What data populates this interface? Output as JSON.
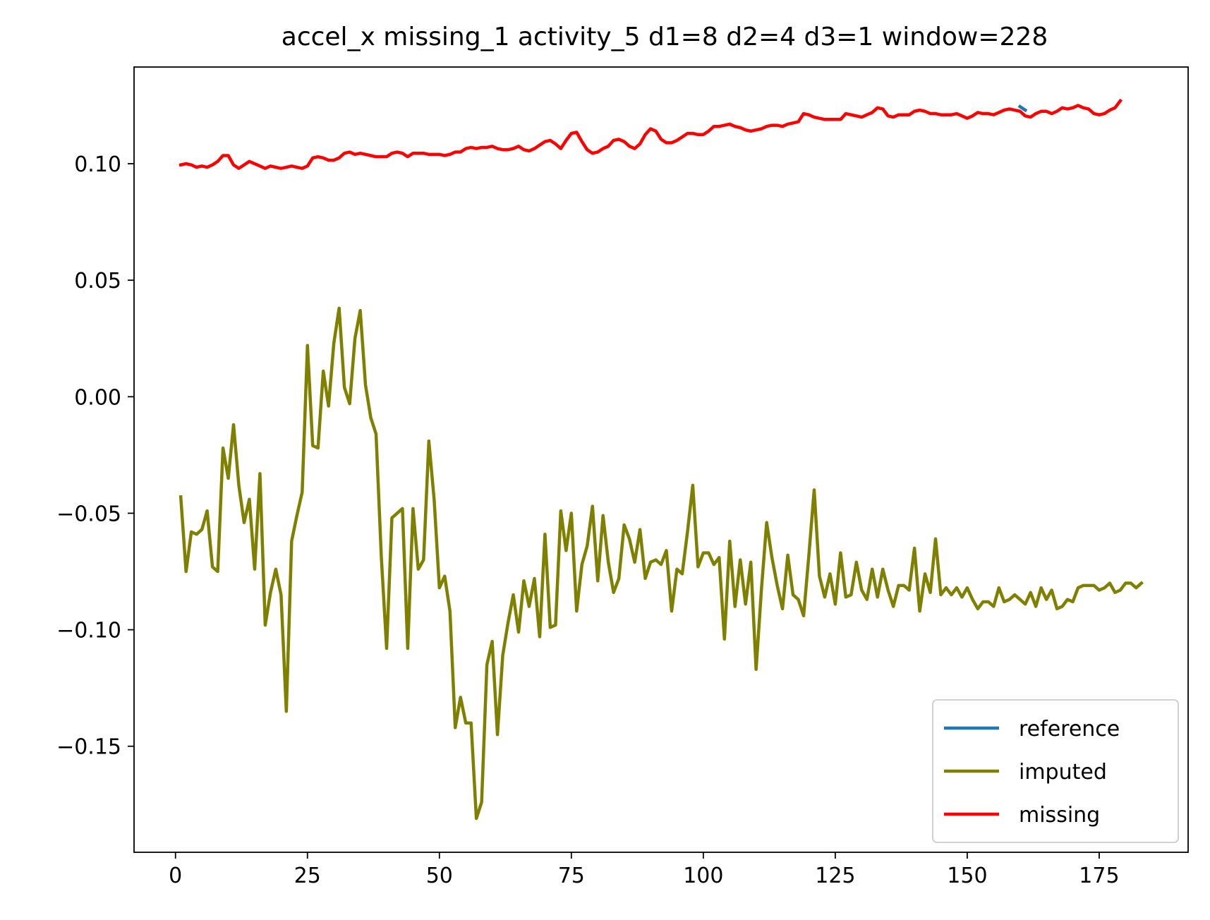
{
  "chart_data": {
    "type": "line",
    "title": "accel_x missing_1 activity_5 d1=8 d2=4 d3=1 window=228",
    "xlabel": "",
    "ylabel": "",
    "xlim": [
      -7.85,
      191.85
    ],
    "ylim": [
      -0.1955,
      0.1415
    ],
    "x_ticks": [
      0,
      25,
      50,
      75,
      100,
      125,
      150,
      175
    ],
    "x_tick_labels": [
      "0",
      "25",
      "50",
      "75",
      "100",
      "125",
      "150",
      "175"
    ],
    "y_ticks": [
      -0.15,
      -0.1,
      -0.05,
      0.0,
      0.05,
      0.1
    ],
    "y_tick_labels": [
      "−0.15",
      "−0.10",
      "−0.05",
      "0.00",
      "0.05",
      "0.10"
    ],
    "grid": false,
    "legend_position": "lower right",
    "x_start": 1,
    "series": [
      {
        "name": "reference",
        "color": "#1f77b4",
        "x_start": 160,
        "values": [
          0.1245,
          0.123
        ]
      },
      {
        "name": "imputed",
        "color": "#808000",
        "x_start": 1,
        "values": [
          -0.043,
          -0.075,
          -0.058,
          -0.059,
          -0.057,
          -0.049,
          -0.073,
          -0.075,
          -0.022,
          -0.035,
          -0.012,
          -0.038,
          -0.054,
          -0.044,
          -0.074,
          -0.033,
          -0.098,
          -0.084,
          -0.074,
          -0.085,
          -0.135,
          -0.062,
          -0.051,
          -0.041,
          0.022,
          -0.021,
          -0.022,
          0.011,
          -0.004,
          0.023,
          0.038,
          0.004,
          -0.003,
          0.025,
          0.037,
          0.005,
          -0.009,
          -0.016,
          -0.069,
          -0.108,
          -0.052,
          -0.05,
          -0.048,
          -0.108,
          -0.048,
          -0.074,
          -0.07,
          -0.019,
          -0.044,
          -0.082,
          -0.077,
          -0.092,
          -0.142,
          -0.129,
          -0.14,
          -0.14,
          -0.181,
          -0.174,
          -0.115,
          -0.105,
          -0.145,
          -0.111,
          -0.097,
          -0.085,
          -0.101,
          -0.079,
          -0.09,
          -0.078,
          -0.103,
          -0.059,
          -0.099,
          -0.098,
          -0.049,
          -0.066,
          -0.05,
          -0.092,
          -0.072,
          -0.064,
          -0.047,
          -0.079,
          -0.051,
          -0.071,
          -0.084,
          -0.078,
          -0.055,
          -0.061,
          -0.071,
          -0.057,
          -0.078,
          -0.071,
          -0.07,
          -0.072,
          -0.066,
          -0.092,
          -0.074,
          -0.076,
          -0.058,
          -0.038,
          -0.073,
          -0.067,
          -0.067,
          -0.072,
          -0.069,
          -0.104,
          -0.062,
          -0.09,
          -0.07,
          -0.089,
          -0.071,
          -0.117,
          -0.083,
          -0.054,
          -0.069,
          -0.081,
          -0.091,
          -0.068,
          -0.085,
          -0.087,
          -0.094,
          -0.068,
          -0.04,
          -0.077,
          -0.086,
          -0.076,
          -0.089,
          -0.067,
          -0.086,
          -0.085,
          -0.071,
          -0.083,
          -0.087,
          -0.074,
          -0.086,
          -0.074,
          -0.083,
          -0.09,
          -0.081,
          -0.081,
          -0.083,
          -0.065,
          -0.092,
          -0.076,
          -0.084,
          -0.061,
          -0.085,
          -0.082,
          -0.085,
          -0.082,
          -0.086,
          -0.082,
          -0.087,
          -0.091,
          -0.088,
          -0.088,
          -0.09,
          -0.082,
          -0.088,
          -0.087,
          -0.085,
          -0.087,
          -0.089,
          -0.084,
          -0.09,
          -0.082,
          -0.087,
          -0.083,
          -0.091,
          -0.09,
          -0.087,
          -0.088,
          -0.082,
          -0.081,
          -0.081,
          -0.081,
          -0.083,
          -0.082,
          -0.08,
          -0.084,
          -0.083,
          -0.08,
          -0.08,
          -0.082,
          -0.08
        ]
      },
      {
        "name": "missing",
        "color": "#ff0000",
        "x_start": 1,
        "values": [
          0.0995,
          0.1,
          0.0995,
          0.0985,
          0.099,
          0.0985,
          0.0995,
          0.101,
          0.1035,
          0.1035,
          0.0995,
          0.098,
          0.0995,
          0.101,
          0.1,
          0.099,
          0.098,
          0.099,
          0.0985,
          0.098,
          0.0985,
          0.099,
          0.0985,
          0.098,
          0.099,
          0.1025,
          0.103,
          0.1025,
          0.1015,
          0.1015,
          0.1025,
          0.1045,
          0.105,
          0.104,
          0.1045,
          0.104,
          0.1035,
          0.103,
          0.103,
          0.103,
          0.1045,
          0.105,
          0.1045,
          0.103,
          0.1045,
          0.1045,
          0.1045,
          0.104,
          0.104,
          0.104,
          0.1035,
          0.104,
          0.105,
          0.105,
          0.1065,
          0.107,
          0.1065,
          0.107,
          0.107,
          0.1075,
          0.1065,
          0.106,
          0.106,
          0.1065,
          0.1075,
          0.106,
          0.1055,
          0.1065,
          0.108,
          0.1095,
          0.11,
          0.1085,
          0.1065,
          0.11,
          0.113,
          0.1135,
          0.1095,
          0.106,
          0.1045,
          0.105,
          0.1065,
          0.1075,
          0.11,
          0.1105,
          0.1095,
          0.1075,
          0.1065,
          0.1085,
          0.1125,
          0.115,
          0.114,
          0.1105,
          0.109,
          0.109,
          0.11,
          0.1115,
          0.113,
          0.113,
          0.1125,
          0.1125,
          0.114,
          0.116,
          0.116,
          0.1165,
          0.117,
          0.116,
          0.1155,
          0.1145,
          0.114,
          0.1145,
          0.115,
          0.116,
          0.1165,
          0.1165,
          0.116,
          0.117,
          0.1175,
          0.118,
          0.1215,
          0.121,
          0.12,
          0.1195,
          0.119,
          0.119,
          0.119,
          0.119,
          0.1215,
          0.121,
          0.1205,
          0.12,
          0.121,
          0.122,
          0.124,
          0.1235,
          0.1205,
          0.12,
          0.121,
          0.121,
          0.121,
          0.1225,
          0.123,
          0.1225,
          0.1215,
          0.1215,
          0.121,
          0.121,
          0.121,
          0.1215,
          0.1205,
          0.1195,
          0.1205,
          0.122,
          0.1215,
          0.1215,
          0.121,
          0.122,
          0.123,
          0.1235,
          0.123,
          0.1225,
          0.1205,
          0.12,
          0.1215,
          0.1225,
          0.1225,
          0.1215,
          0.1225,
          0.124,
          0.1235,
          0.124,
          0.125,
          0.124,
          0.1235,
          0.1215,
          0.121,
          0.1215,
          0.123,
          0.124,
          0.127
        ]
      }
    ]
  }
}
